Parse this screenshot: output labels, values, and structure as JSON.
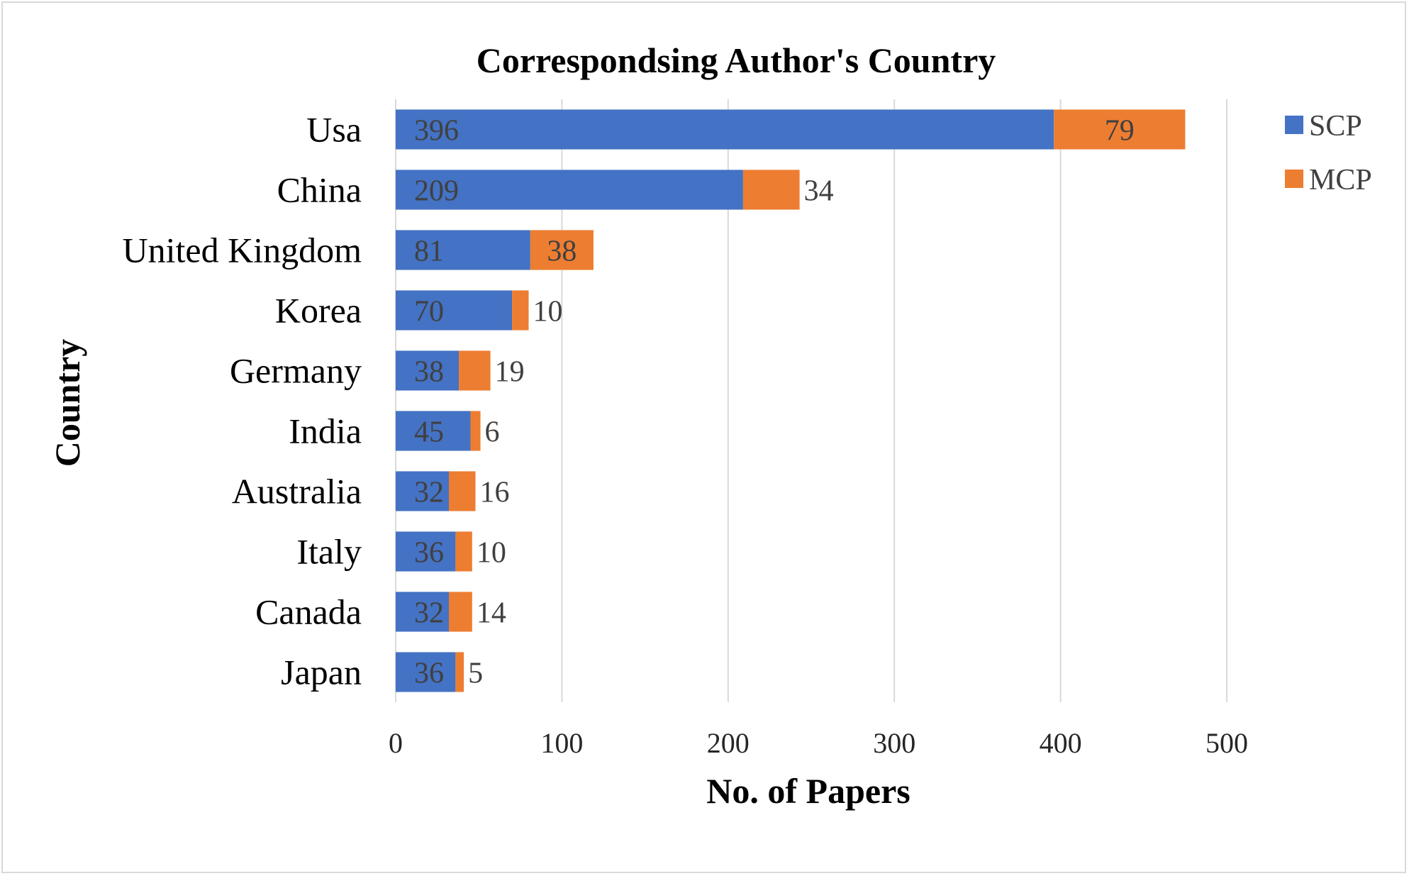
{
  "chart_data": {
    "type": "bar",
    "orientation": "horizontal",
    "stacked": true,
    "title": "Correspondsing Author's Country",
    "xlabel": "No. of Papers",
    "ylabel": "Country",
    "categories": [
      "Usa",
      "China",
      "United Kingdom",
      "Korea",
      "Germany",
      "India",
      "Australia",
      "Italy",
      "Canada",
      "Japan"
    ],
    "series": [
      {
        "name": "SCP",
        "color": "#4472C4",
        "values": [
          396,
          209,
          81,
          70,
          38,
          45,
          32,
          36,
          32,
          36
        ]
      },
      {
        "name": "MCP",
        "color": "#ED7D31",
        "values": [
          79,
          34,
          38,
          10,
          19,
          6,
          16,
          10,
          14,
          5
        ]
      }
    ],
    "xlim": [
      0,
      500
    ],
    "xticks": [
      0,
      100,
      200,
      300,
      400,
      500
    ],
    "grid": true,
    "legend_position": "top-right"
  }
}
